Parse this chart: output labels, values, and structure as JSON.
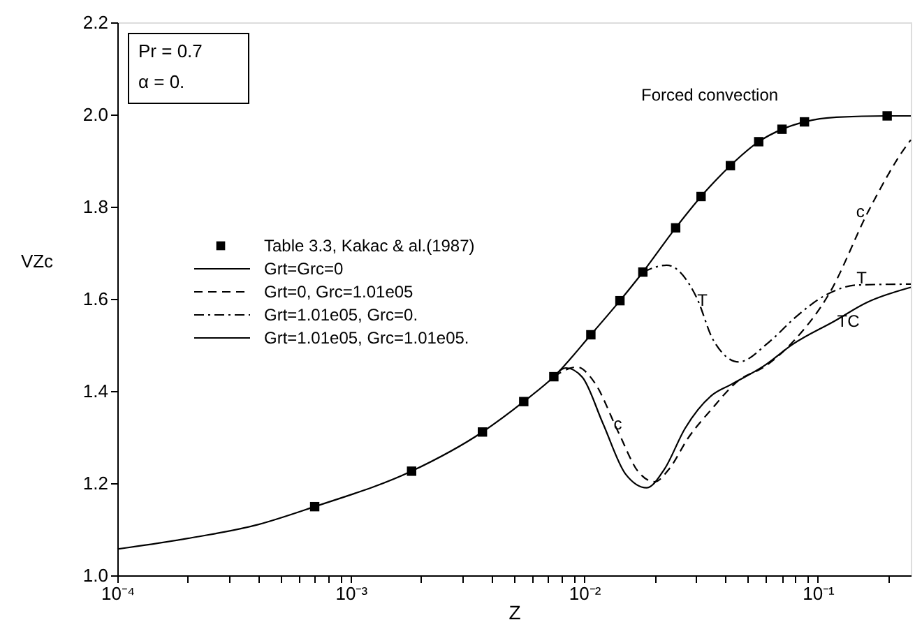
{
  "chart_data": {
    "type": "line",
    "xlabel": "Z",
    "ylabel": "VZc",
    "log": "x",
    "grid": false,
    "legend": "top left",
    "xlim": [
      0.0001,
      0.25
    ],
    "ylim": [
      1.0,
      2.2
    ],
    "xticks": [
      {
        "value": 0.0001,
        "label": "10⁻⁴"
      },
      {
        "value": 0.0002,
        "label": null
      },
      {
        "value": 0.0003,
        "label": null
      },
      {
        "value": 0.0004,
        "label": null
      },
      {
        "value": 0.0005,
        "label": null
      },
      {
        "value": 0.0006,
        "label": null
      },
      {
        "value": 0.0007,
        "label": null
      },
      {
        "value": 0.0008,
        "label": null
      },
      {
        "value": 0.0009,
        "label": null
      },
      {
        "value": 0.001,
        "label": "10⁻³"
      },
      {
        "value": 0.002,
        "label": null
      },
      {
        "value": 0.003,
        "label": null
      },
      {
        "value": 0.004,
        "label": null
      },
      {
        "value": 0.005,
        "label": null
      },
      {
        "value": 0.006,
        "label": null
      },
      {
        "value": 0.007,
        "label": null
      },
      {
        "value": 0.008,
        "label": null
      },
      {
        "value": 0.009,
        "label": null
      },
      {
        "value": 0.01,
        "label": "10⁻²"
      },
      {
        "value": 0.02,
        "label": null
      },
      {
        "value": 0.03,
        "label": null
      },
      {
        "value": 0.04,
        "label": null
      },
      {
        "value": 0.05,
        "label": null
      },
      {
        "value": 0.06,
        "label": null
      },
      {
        "value": 0.07,
        "label": null
      },
      {
        "value": 0.08,
        "label": null
      },
      {
        "value": 0.09,
        "label": null
      },
      {
        "value": 0.1,
        "label": "10⁻¹"
      },
      {
        "value": 0.2,
        "label": null
      }
    ],
    "yticks": [
      {
        "value": 1.0,
        "label": "1.0"
      },
      1.2,
      1.4,
      1.6,
      1.8,
      {
        "value": 2.0,
        "label": "2.0"
      },
      2.2
    ],
    "series": [
      {
        "name": "Table 3.3, Kakac & al.(1987)",
        "type": "scatter",
        "marker": "square",
        "color": "#000000",
        "x": [
          0.0007,
          0.00182,
          0.00366,
          0.0055,
          0.0074,
          0.01066,
          0.0142,
          0.0178,
          0.0246,
          0.0316,
          0.0422,
          0.0558,
          0.0702,
          0.0876,
          0.198
        ],
        "values": [
          1.149,
          1.226,
          1.311,
          1.377,
          1.431,
          1.522,
          1.596,
          1.658,
          1.754,
          1.822,
          1.889,
          1.941,
          1.968,
          1.984,
          1.997
        ]
      },
      {
        "name": "Grt=Grc=0",
        "line_style": "solid",
        "marker": "none",
        "color": "#000000",
        "x": [
          0.0001,
          0.0002,
          0.0004,
          0.0007,
          0.00182,
          0.00366,
          0.0055,
          0.0074,
          0.01066,
          0.0142,
          0.0178,
          0.0246,
          0.0316,
          0.0422,
          0.0558,
          0.0702,
          0.0876,
          0.12,
          0.198,
          0.25
        ],
        "values": [
          1.057,
          1.08,
          1.11,
          1.149,
          1.226,
          1.311,
          1.377,
          1.431,
          1.522,
          1.596,
          1.658,
          1.754,
          1.822,
          1.889,
          1.941,
          1.968,
          1.984,
          1.994,
          1.997,
          1.997
        ]
      },
      {
        "name": "Grt=0, Grc=1.01e05",
        "line_style": "dashed",
        "marker": "none",
        "color": "#000000",
        "x": [
          0.0074,
          0.0093,
          0.011,
          0.014,
          0.017,
          0.02,
          0.023,
          0.028,
          0.035,
          0.045,
          0.06,
          0.0796,
          0.112,
          0.166,
          0.24,
          0.25
        ],
        "values": [
          1.431,
          1.452,
          1.42,
          1.31,
          1.225,
          1.203,
          1.23,
          1.3,
          1.36,
          1.42,
          1.455,
          1.511,
          1.612,
          1.794,
          1.933,
          1.945
        ]
      },
      {
        "name": "Grt=1.01e05, Grc=0.",
        "line_style": "dashdot",
        "marker": "none",
        "color": "#000000",
        "x": [
          0.0178,
          0.0225,
          0.0303,
          0.0356,
          0.0458,
          0.0617,
          0.081,
          0.107,
          0.148,
          0.25
        ],
        "values": [
          1.658,
          1.673,
          1.602,
          1.511,
          1.463,
          1.506,
          1.562,
          1.607,
          1.63,
          1.632
        ]
      },
      {
        "name": "Grt=1.01e05, Grc=1.01e05.",
        "line_style": "solid",
        "marker": "none",
        "color": "#000000",
        "x": [
          0.0074,
          0.00835,
          0.0098,
          0.012,
          0.015,
          0.0185,
          0.022,
          0.027,
          0.035,
          0.0428,
          0.059,
          0.0778,
          0.118,
          0.162,
          0.25
        ],
        "values": [
          1.431,
          1.45,
          1.43,
          1.33,
          1.22,
          1.19,
          1.23,
          1.319,
          1.39,
          1.415,
          1.455,
          1.501,
          1.552,
          1.592,
          1.625
        ]
      }
    ],
    "annotations": [
      "Pr = 0.7",
      "α = 0.",
      "Forced convection",
      {
        "text": "c",
        "x": 0.0139,
        "y": 1.329
      },
      {
        "text": "c",
        "x": 0.152,
        "y": 1.79
      },
      {
        "text": "T",
        "x": 0.032,
        "y": 1.597
      },
      {
        "text": "T",
        "x": 0.154,
        "y": 1.645
      },
      {
        "text": "TC",
        "x": 0.135,
        "y": 1.552
      }
    ]
  }
}
